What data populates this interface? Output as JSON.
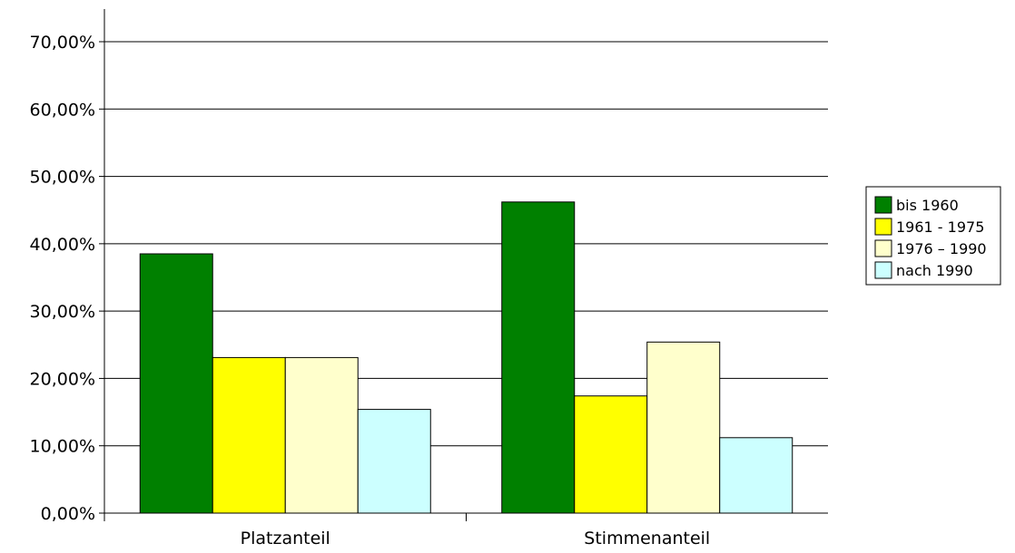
{
  "chart_data": {
    "type": "bar",
    "categories": [
      "Platzanteil",
      "Stimmenanteil"
    ],
    "series": [
      {
        "name": "bis 1960",
        "values": [
          0.385,
          0.462
        ],
        "color": "#008000"
      },
      {
        "name": "1961 - 1975",
        "values": [
          0.231,
          0.174
        ],
        "color": "#ffff00"
      },
      {
        "name": "1976 – 1990",
        "values": [
          0.231,
          0.254
        ],
        "color": "#ffffcc"
      },
      {
        "name": "nach 1990",
        "values": [
          0.154,
          0.112
        ],
        "color": "#ccffff"
      }
    ],
    "yticks": [
      "0,00%",
      "10,00%",
      "20,00%",
      "30,00%",
      "40,00%",
      "50,00%",
      "60,00%",
      "70,00%"
    ],
    "ylim": [
      0,
      0.7
    ],
    "grid": true,
    "legend_position": "right",
    "title": "",
    "xlabel": "",
    "ylabel": ""
  }
}
